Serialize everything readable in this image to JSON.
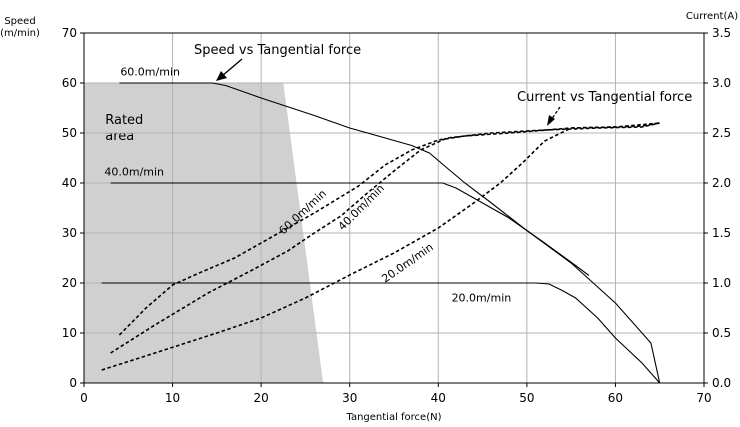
{
  "chart_data": {
    "type": "line",
    "title": "",
    "xlabel": "Tangential force(N)",
    "ylabel_left": "Speed\n(m/min)",
    "ylabel_right": "Current(A)",
    "xlim": [
      0,
      70
    ],
    "ylim_left": [
      0,
      70
    ],
    "ylim_right": [
      0,
      3.5
    ],
    "x_ticks": [
      0,
      10,
      20,
      30,
      40,
      50,
      60,
      70
    ],
    "y_ticks_left": [
      0,
      10,
      20,
      30,
      40,
      50,
      60,
      70
    ],
    "y_ticks_right": [
      "0.0",
      "0.5",
      "1.0",
      "1.5",
      "2.0",
      "2.5",
      "3.0",
      "3.5"
    ],
    "grid": true,
    "regions": [
      {
        "label": "Rated\narea",
        "color": "#d0d0d0",
        "polygon": [
          [
            0,
            0
          ],
          [
            0,
            60
          ],
          [
            22.5,
            60
          ],
          [
            27,
            0
          ]
        ]
      }
    ],
    "annotations": [
      {
        "text": "Speed vs Tangential force"
      },
      {
        "text": "Current vs Tangential force"
      }
    ],
    "speed_series": [
      {
        "label": "60.0m/min",
        "style": "solid",
        "points": [
          [
            4,
            60
          ],
          [
            14.5,
            60
          ],
          [
            16,
            59.5
          ],
          [
            20,
            57
          ],
          [
            26,
            53.5
          ],
          [
            30,
            51
          ],
          [
            35,
            48.5
          ],
          [
            37,
            47.5
          ],
          [
            39,
            46
          ],
          [
            41,
            43
          ],
          [
            43,
            40
          ],
          [
            46,
            36
          ],
          [
            50,
            30.5
          ],
          [
            55,
            24
          ],
          [
            60,
            16
          ],
          [
            64,
            8
          ],
          [
            65,
            0
          ]
        ]
      },
      {
        "label": "40.0m/min",
        "style": "solid",
        "points": [
          [
            3,
            40
          ],
          [
            39,
            40
          ],
          [
            40.5,
            40
          ],
          [
            42,
            39
          ],
          [
            44,
            37
          ],
          [
            48,
            33
          ],
          [
            52,
            28
          ],
          [
            55.5,
            23.5
          ],
          [
            57,
            21.5
          ]
        ]
      },
      {
        "label": "20.0m/min",
        "style": "solid",
        "points": [
          [
            2,
            20
          ],
          [
            51,
            20
          ],
          [
            52.5,
            19.8
          ],
          [
            54,
            18.5
          ],
          [
            55.5,
            17
          ],
          [
            58,
            13
          ],
          [
            60,
            9
          ],
          [
            63,
            4
          ],
          [
            65,
            0
          ]
        ]
      }
    ],
    "current_series": [
      {
        "label": "60.0m/min",
        "style": "dashed",
        "points": [
          [
            4,
            0.48
          ],
          [
            7,
            0.75
          ],
          [
            10,
            0.98
          ],
          [
            13,
            1.1
          ],
          [
            17,
            1.25
          ],
          [
            21,
            1.45
          ],
          [
            26,
            1.7
          ],
          [
            31,
            1.97
          ],
          [
            34,
            2.18
          ],
          [
            37,
            2.33
          ],
          [
            40,
            2.43
          ],
          [
            43,
            2.47
          ],
          [
            48,
            2.5
          ],
          [
            55,
            2.55
          ],
          [
            60,
            2.56
          ],
          [
            63,
            2.57
          ],
          [
            65,
            2.6
          ]
        ]
      },
      {
        "label": "40.0m/min",
        "style": "dashed",
        "points": [
          [
            3,
            0.3
          ],
          [
            8,
            0.58
          ],
          [
            14,
            0.9
          ],
          [
            19,
            1.13
          ],
          [
            23,
            1.32
          ],
          [
            26,
            1.5
          ],
          [
            29,
            1.67
          ],
          [
            32,
            1.9
          ],
          [
            35,
            2.12
          ],
          [
            38,
            2.33
          ],
          [
            41,
            2.45
          ],
          [
            46,
            2.5
          ],
          [
            52,
            2.53
          ],
          [
            58,
            2.55
          ],
          [
            63,
            2.56
          ],
          [
            65,
            2.6
          ]
        ]
      },
      {
        "label": "20.0m/min",
        "style": "dashed",
        "points": [
          [
            2,
            0.13
          ],
          [
            8,
            0.3
          ],
          [
            15,
            0.5
          ],
          [
            20,
            0.65
          ],
          [
            25,
            0.85
          ],
          [
            30,
            1.08
          ],
          [
            35,
            1.3
          ],
          [
            40,
            1.55
          ],
          [
            44,
            1.8
          ],
          [
            47,
            2.0
          ],
          [
            49.5,
            2.2
          ],
          [
            52,
            2.42
          ],
          [
            55,
            2.55
          ],
          [
            60,
            2.56
          ],
          [
            65,
            2.6
          ]
        ]
      }
    ]
  }
}
